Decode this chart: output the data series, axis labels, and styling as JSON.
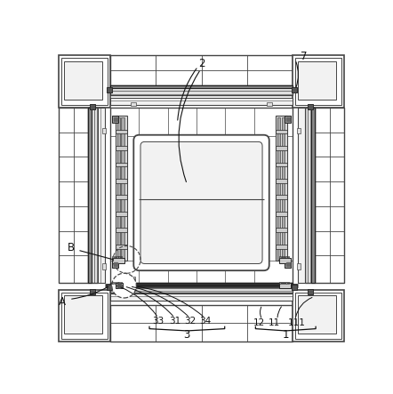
{
  "bg_color": "#ffffff",
  "lc": "#444444",
  "dc": "#222222",
  "gray1": "#cccccc",
  "gray2": "#e0e0e0",
  "gray3": "#f2f2f2",
  "fig_width": 4.42,
  "fig_height": 4.43,
  "dpi": 100
}
